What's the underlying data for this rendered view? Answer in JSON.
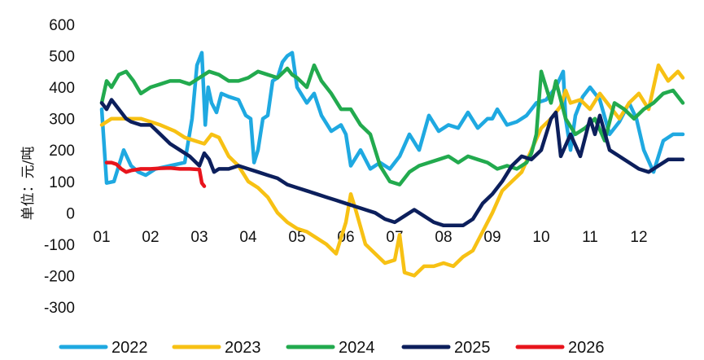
{
  "chart_data": {
    "type": "line",
    "title": "",
    "ylabel": "单位：元/吨",
    "xlabel": "",
    "ylim": [
      -300,
      600
    ],
    "yticks": [
      600,
      500,
      400,
      300,
      200,
      100,
      0,
      -100,
      -200,
      -300
    ],
    "x_tick_labels": [
      "01",
      "02",
      "03",
      "04",
      "05",
      "06",
      "07",
      "08",
      "09",
      "10",
      "11",
      "12"
    ],
    "grid": false,
    "legend_position": "bottom",
    "series": [
      {
        "name": "2022",
        "color": "#1FA9E1",
        "x": [
          1.0,
          1.1,
          1.25,
          1.45,
          1.6,
          1.75,
          1.9,
          2.1,
          2.4,
          2.7,
          2.85,
          2.95,
          3.05,
          3.12,
          3.18,
          3.25,
          3.35,
          3.45,
          3.6,
          3.8,
          3.95,
          4.05,
          4.12,
          4.2,
          4.3,
          4.4,
          4.5,
          4.6,
          4.7,
          4.8,
          4.9,
          5.0,
          5.2,
          5.35,
          5.5,
          5.7,
          5.9,
          6.0,
          6.1,
          6.3,
          6.5,
          6.7,
          6.9,
          7.1,
          7.3,
          7.5,
          7.7,
          7.9,
          8.1,
          8.3,
          8.5,
          8.7,
          8.9,
          9.0,
          9.1,
          9.3,
          9.5,
          9.7,
          9.9,
          10.1,
          10.3,
          10.45,
          10.5,
          10.6,
          10.7,
          10.85,
          11.0,
          11.2,
          11.4,
          11.6,
          11.8,
          11.95,
          12.1,
          12.3,
          12.5,
          12.7,
          12.9
        ],
        "values": [
          330,
          95,
          100,
          200,
          150,
          130,
          120,
          140,
          150,
          160,
          300,
          470,
          510,
          280,
          400,
          350,
          320,
          380,
          370,
          360,
          310,
          300,
          160,
          200,
          300,
          310,
          420,
          430,
          480,
          500,
          510,
          400,
          350,
          380,
          310,
          260,
          280,
          250,
          150,
          200,
          140,
          160,
          140,
          180,
          250,
          200,
          310,
          260,
          280,
          270,
          320,
          270,
          300,
          300,
          330,
          280,
          290,
          310,
          350,
          360,
          400,
          450,
          300,
          200,
          310,
          370,
          400,
          360,
          250,
          290,
          350,
          300,
          200,
          130,
          230,
          250,
          250
        ]
      },
      {
        "name": "2023",
        "color": "#F7C114",
        "x": [
          1.0,
          1.2,
          1.5,
          1.8,
          2.0,
          2.2,
          2.5,
          2.7,
          2.9,
          3.1,
          3.25,
          3.4,
          3.6,
          3.8,
          4.0,
          4.2,
          4.4,
          4.6,
          4.8,
          5.0,
          5.2,
          5.4,
          5.6,
          5.8,
          6.0,
          6.1,
          6.2,
          6.4,
          6.6,
          6.8,
          7.0,
          7.1,
          7.2,
          7.4,
          7.6,
          7.8,
          8.0,
          8.2,
          8.4,
          8.6,
          8.8,
          9.0,
          9.2,
          9.4,
          9.6,
          9.8,
          10.0,
          10.2,
          10.4,
          10.5,
          10.6,
          10.8,
          11.0,
          11.2,
          11.4,
          11.6,
          11.8,
          12.0,
          12.2,
          12.4,
          12.6,
          12.8,
          12.9
        ],
        "values": [
          280,
          300,
          300,
          300,
          290,
          280,
          260,
          240,
          230,
          220,
          250,
          240,
          180,
          150,
          100,
          80,
          50,
          0,
          -30,
          -50,
          -60,
          -80,
          -100,
          -130,
          -30,
          60,
          10,
          -100,
          -130,
          -160,
          -150,
          -70,
          -190,
          -200,
          -170,
          -170,
          -160,
          -170,
          -140,
          -120,
          -60,
          0,
          70,
          100,
          130,
          200,
          270,
          300,
          340,
          390,
          350,
          360,
          330,
          380,
          340,
          300,
          350,
          380,
          330,
          470,
          420,
          450,
          430
        ]
      },
      {
        "name": "2024",
        "color": "#22AA4E",
        "x": [
          1.0,
          1.1,
          1.2,
          1.35,
          1.5,
          1.65,
          1.8,
          2.0,
          2.2,
          2.4,
          2.6,
          2.8,
          3.0,
          3.2,
          3.4,
          3.6,
          3.8,
          4.0,
          4.2,
          4.4,
          4.6,
          4.8,
          4.9,
          5.0,
          5.2,
          5.35,
          5.5,
          5.7,
          5.9,
          6.1,
          6.3,
          6.5,
          6.7,
          6.9,
          7.1,
          7.3,
          7.5,
          7.7,
          7.9,
          8.1,
          8.3,
          8.5,
          8.7,
          8.9,
          9.1,
          9.3,
          9.5,
          9.7,
          9.8,
          9.9,
          10.0,
          10.2,
          10.3,
          10.5,
          10.7,
          10.9,
          11.1,
          11.3,
          11.5,
          11.7,
          11.9,
          12.1,
          12.3,
          12.5,
          12.7,
          12.9
        ],
        "values": [
          350,
          420,
          400,
          440,
          450,
          420,
          380,
          400,
          410,
          420,
          420,
          410,
          430,
          450,
          440,
          420,
          420,
          430,
          450,
          440,
          430,
          460,
          440,
          430,
          400,
          470,
          420,
          380,
          330,
          330,
          280,
          250,
          150,
          100,
          90,
          130,
          150,
          160,
          170,
          180,
          160,
          180,
          170,
          160,
          140,
          150,
          140,
          160,
          190,
          250,
          450,
          350,
          420,
          300,
          250,
          270,
          300,
          230,
          350,
          330,
          300,
          330,
          350,
          380,
          390,
          350
        ]
      },
      {
        "name": "2025",
        "color": "#0C1F5C",
        "x": [
          1.0,
          1.1,
          1.2,
          1.3,
          1.4,
          1.5,
          1.6,
          1.8,
          2.0,
          2.2,
          2.4,
          2.6,
          2.8,
          3.0,
          3.1,
          3.2,
          3.3,
          3.4,
          3.6,
          3.8,
          4.0,
          4.2,
          4.4,
          4.6,
          4.8,
          5.0,
          5.2,
          5.4,
          5.6,
          5.8,
          6.0,
          6.2,
          6.4,
          6.6,
          6.8,
          7.0,
          7.2,
          7.4,
          7.6,
          7.8,
          8.0,
          8.2,
          8.4,
          8.6,
          8.8,
          9.0,
          9.2,
          9.4,
          9.6,
          9.8,
          10.0,
          10.2,
          10.3,
          10.4,
          10.6,
          10.8,
          11.0,
          11.1,
          11.2,
          11.4,
          11.6,
          11.8,
          12.0,
          12.2,
          12.4,
          12.6,
          12.8,
          12.9
        ],
        "values": [
          350,
          330,
          360,
          340,
          320,
          300,
          290,
          280,
          280,
          250,
          220,
          200,
          180,
          150,
          190,
          170,
          130,
          140,
          140,
          150,
          140,
          130,
          120,
          110,
          90,
          80,
          70,
          60,
          50,
          40,
          30,
          20,
          10,
          0,
          -20,
          -30,
          -10,
          10,
          -10,
          -30,
          -40,
          -40,
          -40,
          -20,
          30,
          60,
          100,
          150,
          180,
          170,
          200,
          300,
          320,
          180,
          250,
          180,
          300,
          250,
          310,
          200,
          180,
          160,
          140,
          130,
          150,
          170,
          170,
          170
        ]
      },
      {
        "name": "2026",
        "color": "#E8141C",
        "x": [
          1.1,
          1.2,
          1.3,
          1.4,
          1.5,
          1.6,
          1.8,
          2.0,
          2.2,
          2.4,
          2.6,
          2.8,
          3.0,
          3.05,
          3.1
        ],
        "values": [
          160,
          160,
          155,
          140,
          130,
          135,
          140,
          140,
          142,
          143,
          140,
          140,
          138,
          95,
          85
        ]
      }
    ]
  }
}
